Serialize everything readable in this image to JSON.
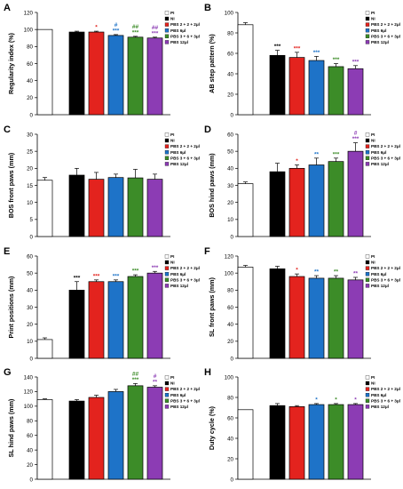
{
  "legend_labels": [
    "PI",
    "NI",
    "PBS 2 + 2 + 2μl",
    "PBS 6μl",
    "PBS 3 + 6 + 3μl",
    "PBS 12μl"
  ],
  "colors": {
    "PI": "#ffffff",
    "NI": "#000000",
    "PBS 2 + 2 + 2μl": "#e3231e",
    "PBS 6μl": "#1e73c8",
    "PBS 3 + 6 + 3μl": "#3c8c28",
    "PBS 12μl": "#8c3cb4"
  },
  "chart_data": [
    {
      "panel": "A",
      "type": "bar",
      "ylabel": "Regularity index (%)",
      "ylim": [
        0,
        120
      ],
      "yticks": [
        0,
        20,
        40,
        60,
        80,
        100,
        120
      ],
      "categories": [
        "PI",
        "NI",
        "PBS 2 + 2 + 2μl",
        "PBS 6μl",
        "PBS 3 + 6 + 3μl",
        "PBS 12μl"
      ],
      "values": [
        100,
        97,
        97,
        93,
        91,
        90
      ],
      "errors": [
        0,
        1,
        1,
        1,
        1,
        1
      ],
      "annotations": [
        "",
        "",
        "*",
        "# ***",
        "## ***",
        "## ***"
      ]
    },
    {
      "panel": "B",
      "type": "bar",
      "ylabel": "AB step pattern (%)",
      "ylim": [
        0,
        100
      ],
      "yticks": [
        0,
        20,
        40,
        60,
        80,
        100
      ],
      "categories": [
        "PI",
        "NI",
        "PBS 2 + 2 + 2μl",
        "PBS 6μl",
        "PBS 3 + 6 + 3μl",
        "PBS 12μl"
      ],
      "values": [
        88,
        58,
        56,
        53,
        47,
        45
      ],
      "errors": [
        2,
        5,
        5,
        4,
        3,
        3
      ],
      "annotations": [
        "",
        "***",
        "***",
        "***",
        "***",
        "***"
      ]
    },
    {
      "panel": "C",
      "type": "bar",
      "ylabel": "BOS front paws (mm)",
      "ylim": [
        0,
        30
      ],
      "yticks": [
        0,
        5,
        10,
        15,
        20,
        25,
        30
      ],
      "categories": [
        "PI",
        "NI",
        "PBS 2 + 2 + 2μl",
        "PBS 6μl",
        "PBS 3 + 6 + 3μl",
        "PBS 12μl"
      ],
      "values": [
        16.5,
        18,
        16.8,
        17.3,
        17.2,
        16.8
      ],
      "errors": [
        0.8,
        2,
        2,
        1,
        2.5,
        1.5
      ],
      "annotations": [
        "",
        "",
        "",
        "",
        "",
        ""
      ]
    },
    {
      "panel": "D",
      "type": "bar",
      "ylabel": "BOS hind paws (mm)",
      "ylim": [
        0,
        60
      ],
      "yticks": [
        0,
        10,
        20,
        30,
        40,
        50,
        60
      ],
      "categories": [
        "PI",
        "NI",
        "PBS 2 + 2 + 2μl",
        "PBS 6μl",
        "PBS 3 + 6 + 3μl",
        "PBS 12μl"
      ],
      "values": [
        31,
        38,
        40,
        42,
        44,
        50
      ],
      "errors": [
        1,
        5,
        2,
        4,
        2,
        5
      ],
      "annotations": [
        "",
        "",
        "*",
        "**",
        "***",
        "# ***"
      ]
    },
    {
      "panel": "E",
      "type": "bar",
      "ylabel": "Print positions (mm)",
      "ylim": [
        0,
        60
      ],
      "yticks": [
        0,
        10,
        20,
        30,
        40,
        50,
        60
      ],
      "categories": [
        "PI",
        "NI",
        "PBS 2 + 2 + 2μl",
        "PBS 6μl",
        "PBS 3 + 6 + 3μl",
        "PBS 12μl"
      ],
      "values": [
        11,
        40,
        45,
        45,
        48,
        50
      ],
      "errors": [
        1,
        5,
        1,
        1,
        1,
        1
      ],
      "annotations": [
        "",
        "***",
        "***",
        "***",
        "***",
        "***"
      ]
    },
    {
      "panel": "F",
      "type": "bar",
      "ylabel": "SL front paws (mm)",
      "ylim": [
        0,
        120
      ],
      "yticks": [
        0,
        20,
        40,
        60,
        80,
        100,
        120
      ],
      "categories": [
        "PI",
        "NI",
        "PBS 2 + 2 + 2μl",
        "PBS 6μl",
        "PBS 3 + 6 + 3μl",
        "PBS 12μl"
      ],
      "values": [
        107,
        105,
        96,
        94,
        94,
        92
      ],
      "errors": [
        2,
        3,
        3,
        3,
        3,
        3
      ],
      "annotations": [
        "",
        "",
        "*",
        "**",
        "**",
        "**"
      ]
    },
    {
      "panel": "G",
      "type": "bar",
      "ylabel": "SL hind paws (mm)",
      "ylim": [
        0,
        140
      ],
      "yticks": [
        0,
        20,
        40,
        60,
        80,
        100,
        120,
        140
      ],
      "categories": [
        "PI",
        "NI",
        "PBS 2 + 2 + 2μl",
        "PBS 6μl",
        "PBS 3 + 6 + 3μl",
        "PBS 12μl"
      ],
      "values": [
        109,
        107,
        112,
        120,
        128,
        126
      ],
      "errors": [
        1,
        2,
        3,
        3,
        3,
        2
      ],
      "annotations": [
        "",
        "",
        "",
        "",
        "## ***",
        "# **"
      ]
    },
    {
      "panel": "H",
      "type": "bar",
      "ylabel": "Duty cycle (%)",
      "ylim": [
        0,
        100
      ],
      "yticks": [
        0,
        20,
        40,
        60,
        80,
        100
      ],
      "categories": [
        "PI",
        "NI",
        "PBS 2 + 2 + 2μl",
        "PBS 6μl",
        "PBS 3 + 6 + 3μl",
        "PBS 12μl"
      ],
      "values": [
        68,
        72,
        71,
        73,
        73,
        73
      ],
      "errors": [
        0,
        2,
        1,
        1,
        1,
        1
      ],
      "annotations": [
        "",
        "",
        "",
        "*",
        "*",
        "*"
      ]
    }
  ]
}
